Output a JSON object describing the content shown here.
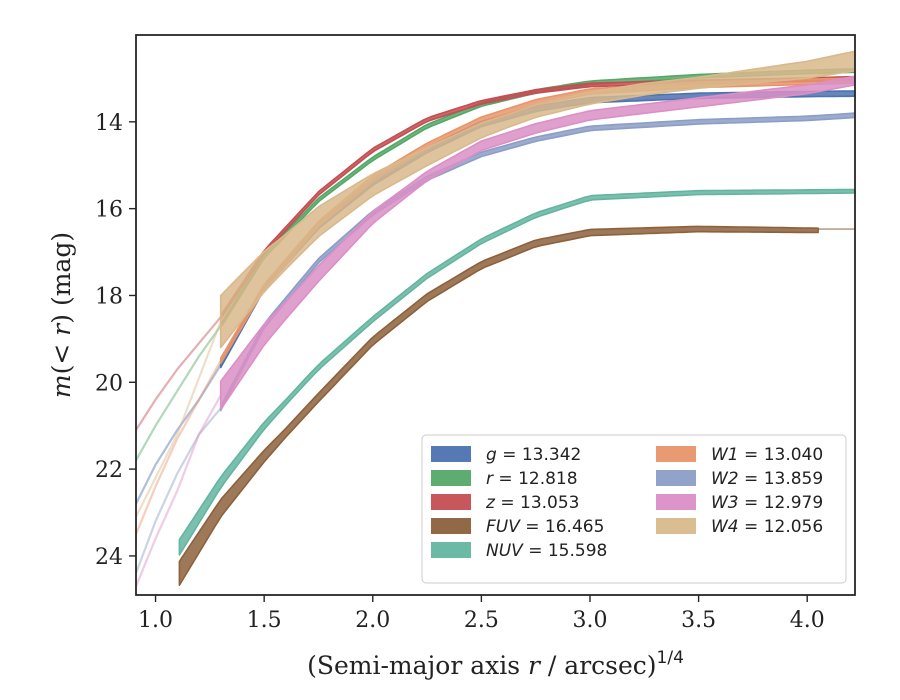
{
  "chart_data": {
    "type": "line",
    "xlabel_main": "(Semi-major axis ",
    "xlabel_var": "r",
    "xlabel_rest": " / arcsec)",
    "xlabel_exp": "1/4",
    "ylabel_m": "m",
    "ylabel_paren": "(",
    "ylabel_var": "< r",
    "ylabel_rest": ") (mag)",
    "xlim": [
      0.91,
      4.22
    ],
    "ylim": [
      24.9,
      12.0
    ],
    "y_inverted": true,
    "xticks": [
      "1.0",
      "1.5",
      "2.0",
      "2.5",
      "3.0",
      "3.5",
      "4.0"
    ],
    "xtick_values": [
      1.0,
      1.5,
      2.0,
      2.5,
      3.0,
      3.5,
      4.0
    ],
    "yticks": [
      "14",
      "16",
      "18",
      "20",
      "22",
      "24"
    ],
    "ytick_values": [
      14,
      16,
      18,
      20,
      22,
      24
    ],
    "grid": false,
    "legend_position": "lower-right",
    "series": [
      {
        "name": "g",
        "value": "13.342",
        "color": "#4c72b0",
        "start": 1.3,
        "x": [
          1.3,
          1.5,
          1.75,
          2.0,
          2.25,
          2.5,
          2.75,
          3.0,
          3.5,
          4.0,
          4.22
        ],
        "y": [
          19.6,
          17.8,
          16.4,
          15.4,
          14.65,
          14.05,
          13.7,
          13.5,
          13.4,
          13.36,
          13.35
        ],
        "width": 0.12,
        "faint_x": [
          0.91,
          1.0,
          1.1,
          1.2,
          1.3
        ],
        "faint_y": [
          22.8,
          21.9,
          21.1,
          20.4,
          19.6
        ]
      },
      {
        "name": "r",
        "value": "12.818",
        "color": "#55a868",
        "start": 1.3,
        "x": [
          1.3,
          1.5,
          1.75,
          2.0,
          2.25,
          2.5,
          2.75,
          3.0,
          3.5,
          4.0,
          4.22
        ],
        "y": [
          18.7,
          17.1,
          15.8,
          14.85,
          14.1,
          13.6,
          13.3,
          13.1,
          12.95,
          12.85,
          12.82
        ],
        "width": 0.08,
        "faint_x": [
          0.91,
          1.0,
          1.1,
          1.2,
          1.3
        ],
        "faint_y": [
          21.8,
          21.0,
          20.2,
          19.4,
          18.7
        ]
      },
      {
        "name": "z",
        "value": "13.053",
        "color": "#c44e52",
        "start": 1.3,
        "x": [
          1.3,
          1.5,
          1.75,
          2.0,
          2.25,
          2.5,
          2.75,
          3.0,
          3.5,
          4.0,
          4.2
        ],
        "y": [
          18.5,
          17.0,
          15.65,
          14.65,
          13.95,
          13.55,
          13.3,
          13.15,
          13.08,
          13.03,
          13.0
        ],
        "width": 0.08,
        "faint_x": [
          0.91,
          1.0,
          1.1,
          1.2,
          1.3
        ],
        "faint_y": [
          21.1,
          20.4,
          19.7,
          19.1,
          18.5
        ]
      },
      {
        "name": "FUV",
        "value": "16.465",
        "color": "#8c613c",
        "start": 1.11,
        "x": [
          1.11,
          1.3,
          1.5,
          1.75,
          2.0,
          2.25,
          2.5,
          2.75,
          3.0,
          3.5,
          4.05
        ],
        "y": [
          24.4,
          22.9,
          21.7,
          20.35,
          19.05,
          18.05,
          17.3,
          16.8,
          16.55,
          16.47,
          16.5
        ],
        "width_x": [
          1.11,
          1.3,
          1.6,
          4.05
        ],
        "width_y": [
          0.55,
          0.4,
          0.2,
          0.1
        ],
        "extend_x": [
          4.05,
          4.22
        ],
        "extend_y": [
          16.47,
          16.47
        ]
      },
      {
        "name": "NUV",
        "value": "15.598",
        "color": "#64b5a0",
        "start": 1.11,
        "x": [
          1.11,
          1.3,
          1.5,
          1.75,
          2.0,
          2.25,
          2.5,
          2.75,
          3.0,
          3.5,
          4.22
        ],
        "y": [
          23.8,
          22.3,
          21.0,
          19.65,
          18.55,
          17.55,
          16.75,
          16.15,
          15.75,
          15.63,
          15.6
        ],
        "width_x": [
          1.11,
          1.3,
          1.6,
          4.22
        ],
        "width_y": [
          0.35,
          0.25,
          0.12,
          0.08
        ]
      },
      {
        "name": "W1",
        "value": "13.040",
        "color": "#e8956a",
        "start": 1.3,
        "x": [
          1.3,
          1.5,
          1.75,
          2.0,
          2.25,
          2.5,
          2.75,
          3.0,
          3.5,
          4.0,
          4.22
        ],
        "y": [
          19.5,
          17.8,
          16.35,
          15.3,
          14.55,
          13.95,
          13.55,
          13.3,
          13.15,
          13.08,
          13.05
        ],
        "width": 0.12,
        "faint_x": [
          0.91,
          1.0,
          1.1,
          1.2,
          1.3
        ],
        "faint_y": [
          23.5,
          22.4,
          21.3,
          20.4,
          19.5
        ]
      },
      {
        "name": "W2",
        "value": "13.859",
        "color": "#8c9ec6",
        "start": 1.3,
        "x": [
          1.3,
          1.5,
          1.75,
          2.0,
          2.25,
          2.5,
          2.75,
          3.0,
          3.5,
          4.0,
          4.22
        ],
        "y": [
          20.6,
          18.7,
          17.2,
          16.1,
          15.3,
          14.75,
          14.4,
          14.15,
          14.0,
          13.92,
          13.85
        ],
        "width": 0.1,
        "faint_x": [
          0.91,
          1.0,
          1.1,
          1.2,
          1.3
        ],
        "faint_y": [
          24.4,
          23.2,
          22.1,
          21.2,
          20.6
        ]
      },
      {
        "name": "W3",
        "value": "12.979",
        "color": "#db8fc6",
        "start": 1.3,
        "x": [
          1.3,
          1.5,
          1.75,
          2.0,
          2.25,
          2.5,
          2.75,
          3.0,
          3.5,
          4.0,
          4.22
        ],
        "y": [
          20.3,
          18.9,
          17.5,
          16.2,
          15.25,
          14.55,
          14.15,
          13.85,
          13.55,
          13.25,
          13.05
        ],
        "width_x": [
          1.3,
          1.6,
          2.2,
          4.22
        ],
        "width_y": [
          0.65,
          0.4,
          0.22,
          0.2
        ],
        "faint_x": [
          0.91,
          1.0,
          1.1,
          1.2,
          1.3
        ],
        "faint_y": [
          24.7,
          23.6,
          22.5,
          21.2,
          20.3
        ]
      },
      {
        "name": "W4",
        "value": "12.056",
        "color": "#d9b98c",
        "start": 1.3,
        "x": [
          1.3,
          1.5,
          1.75,
          2.0,
          2.25,
          2.5,
          2.75,
          3.0,
          3.25,
          3.5,
          3.75,
          4.0,
          4.22
        ],
        "y": [
          18.6,
          17.45,
          16.3,
          15.45,
          14.8,
          14.2,
          13.75,
          13.45,
          13.25,
          13.1,
          12.95,
          12.8,
          12.6
        ],
        "width_x": [
          1.3,
          1.6,
          2.0,
          2.6,
          3.5,
          4.22
        ],
        "width_y": [
          1.2,
          0.8,
          0.5,
          0.3,
          0.25,
          0.45
        ],
        "faint_x": [
          0.91,
          1.0,
          1.1,
          1.2,
          1.3
        ],
        "faint_y": [
          23.1,
          22.2,
          21.2,
          19.9,
          18.6
        ]
      }
    ]
  }
}
